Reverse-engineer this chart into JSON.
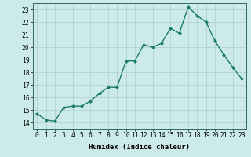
{
  "x": [
    0,
    1,
    2,
    3,
    4,
    5,
    6,
    7,
    8,
    9,
    10,
    11,
    12,
    13,
    14,
    15,
    16,
    17,
    18,
    19,
    20,
    21,
    22,
    23
  ],
  "y": [
    14.7,
    14.2,
    14.1,
    15.2,
    15.3,
    15.3,
    15.7,
    16.3,
    16.8,
    16.8,
    18.9,
    18.9,
    20.2,
    20.0,
    20.3,
    21.5,
    21.1,
    23.2,
    22.5,
    22.0,
    20.5,
    19.4,
    18.4,
    17.5
  ],
  "line_color": "#1a7a6e",
  "marker": "D",
  "markersize": 2.0,
  "linewidth": 1.0,
  "bg_color": "#cceaea",
  "grid_color": "#b0cccc",
  "xlabel": "Humidex (Indice chaleur)",
  "xlim": [
    -0.5,
    23.5
  ],
  "ylim": [
    13.5,
    23.5
  ],
  "yticks": [
    14,
    15,
    16,
    17,
    18,
    19,
    20,
    21,
    22,
    23
  ],
  "xticks": [
    0,
    1,
    2,
    3,
    4,
    5,
    6,
    7,
    8,
    9,
    10,
    11,
    12,
    13,
    14,
    15,
    16,
    17,
    18,
    19,
    20,
    21,
    22,
    23
  ],
  "xtick_labels": [
    "0",
    "1",
    "2",
    "3",
    "4",
    "5",
    "6",
    "7",
    "8",
    "9",
    "10",
    "11",
    "12",
    "13",
    "14",
    "15",
    "16",
    "17",
    "18",
    "19",
    "20",
    "21",
    "22",
    "23"
  ],
  "ytick_labels": [
    "14",
    "15",
    "16",
    "17",
    "18",
    "19",
    "20",
    "21",
    "22",
    "23"
  ],
  "xlabel_fontsize": 6.5,
  "tick_fontsize": 5.8
}
